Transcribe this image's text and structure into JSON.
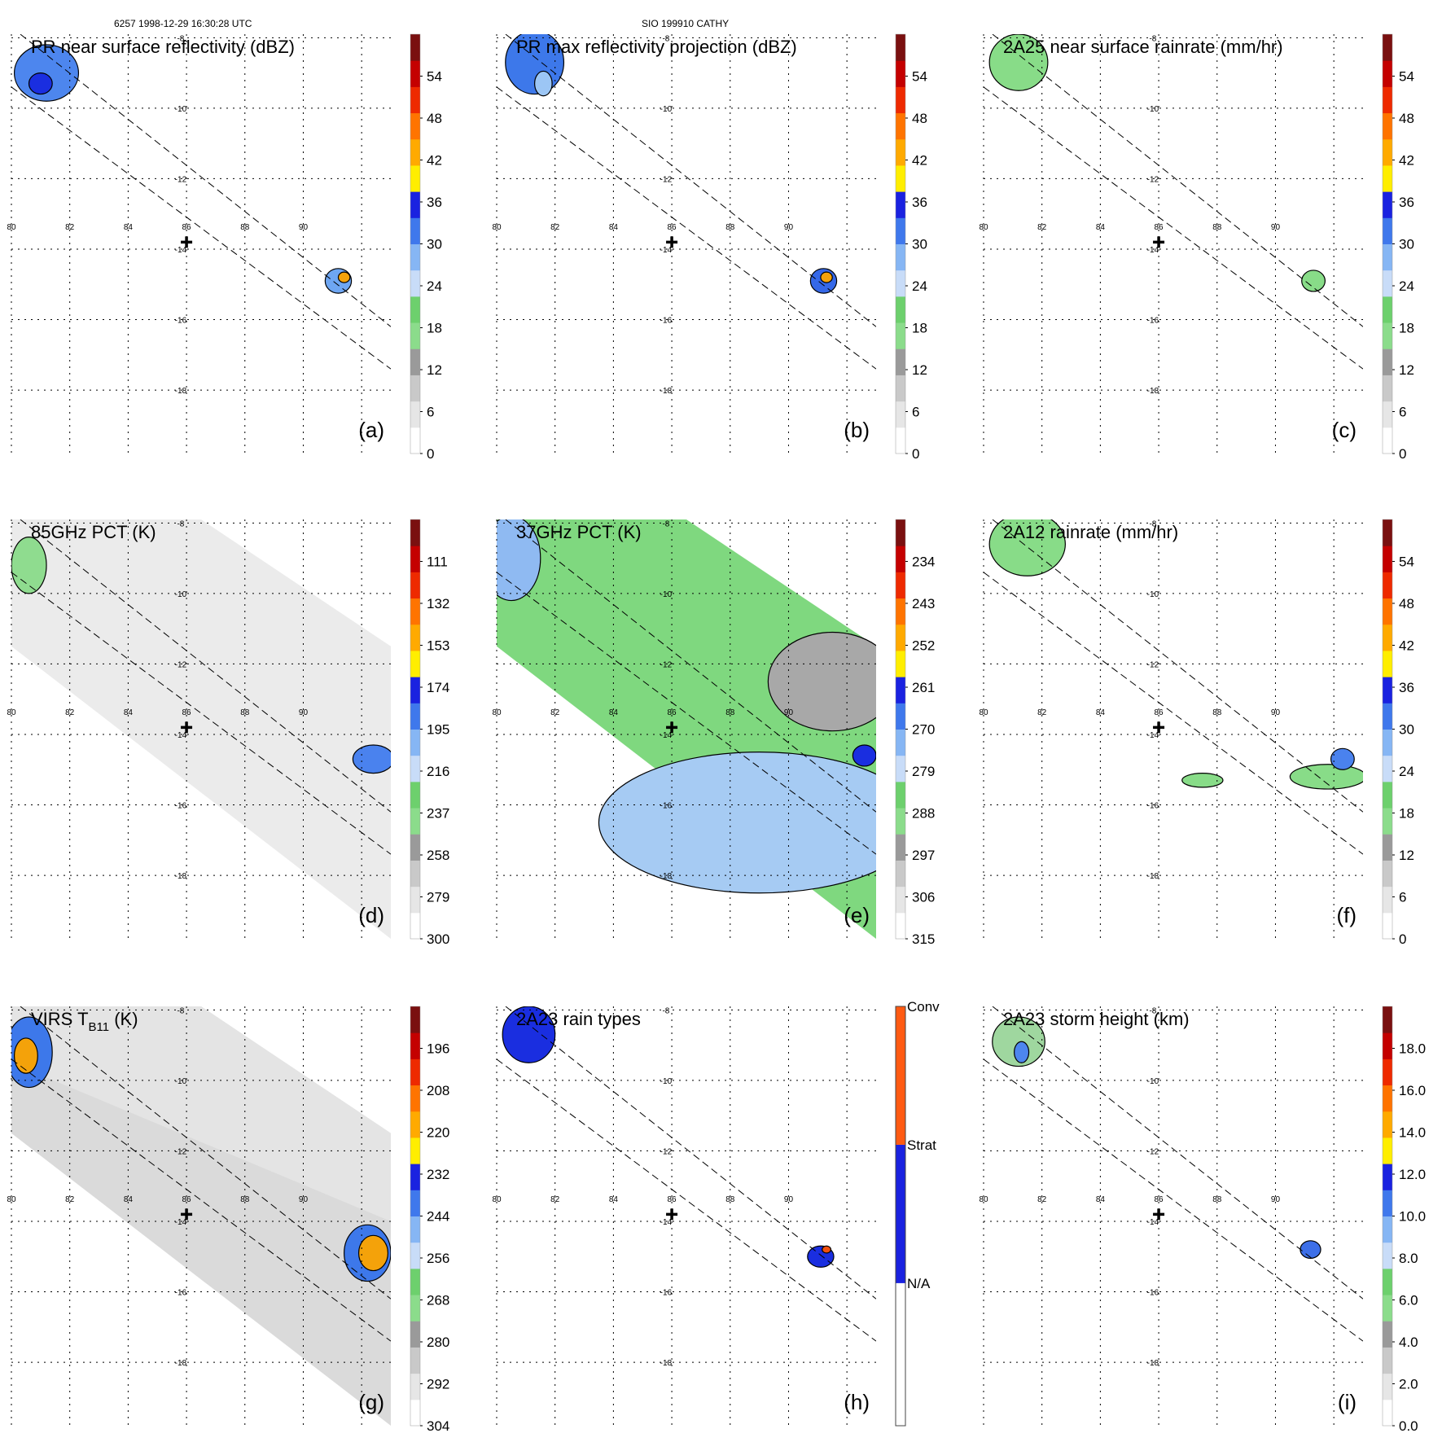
{
  "header": {
    "left": "6257 1998-12-29 16:30:28 UTC",
    "center": "SIO 199910 CATHY"
  },
  "map_axes": {
    "lon_ticks": [
      "80",
      "82",
      "84",
      "86",
      "88",
      "90"
    ],
    "lat_ticks": [
      "-8",
      "-10",
      "-12",
      "-14",
      "-16",
      "-18"
    ],
    "lon_range": [
      80,
      93
    ],
    "lat_range": [
      -7.9,
      -19.8
    ],
    "gridlines": true,
    "center_marker": {
      "lon": 86,
      "lat": -13.8
    }
  },
  "swath_edges": [
    {
      "start": [
        80,
        -9.4
      ],
      "end": [
        93,
        -17.4
      ]
    },
    {
      "start": [
        80,
        -7.7
      ],
      "end": [
        93,
        -16.2
      ]
    }
  ],
  "chart_data": [
    {
      "type": "heatmap",
      "panel_label": "(a)",
      "title": "PR near surface reflectivity (dBZ)",
      "colorbar": {
        "ticks": [
          "0",
          "6",
          "12",
          "18",
          "24",
          "30",
          "36",
          "42",
          "48",
          "54"
        ],
        "range": [
          0,
          60
        ]
      },
      "swath": "pr",
      "features": [
        {
          "lon": 81.2,
          "lat": -9.0,
          "rx": 1.1,
          "ry": 0.8,
          "color": "#4d86ee"
        },
        {
          "lon": 81.0,
          "lat": -9.3,
          "rx": 0.4,
          "ry": 0.3,
          "color": "#1a2ee0"
        },
        {
          "lon": 91.2,
          "lat": -14.9,
          "rx": 0.45,
          "ry": 0.35,
          "color": "#6ea6f2"
        },
        {
          "lon": 91.4,
          "lat": -14.8,
          "rx": 0.2,
          "ry": 0.15,
          "color": "#f4a20a"
        }
      ]
    },
    {
      "type": "heatmap",
      "panel_label": "(b)",
      "title": "PR max reflectivity projection (dBZ)",
      "colorbar": {
        "ticks": [
          "0",
          "6",
          "12",
          "18",
          "24",
          "30",
          "36",
          "42",
          "48",
          "54"
        ],
        "range": [
          0,
          60
        ]
      },
      "swath": "pr",
      "features": [
        {
          "lon": 81.3,
          "lat": -8.7,
          "rx": 1.0,
          "ry": 0.9,
          "color": "#3d78ea"
        },
        {
          "lon": 81.6,
          "lat": -9.3,
          "rx": 0.3,
          "ry": 0.35,
          "color": "#9cc6f5"
        },
        {
          "lon": 91.2,
          "lat": -14.9,
          "rx": 0.45,
          "ry": 0.35,
          "color": "#3568e8"
        },
        {
          "lon": 91.3,
          "lat": -14.8,
          "rx": 0.2,
          "ry": 0.15,
          "color": "#f4a20a"
        }
      ]
    },
    {
      "type": "heatmap",
      "panel_label": "(c)",
      "title": "2A25 near surface rainrate (mm/hr)",
      "colorbar": {
        "ticks": [
          "0",
          "6",
          "12",
          "18",
          "24",
          "30",
          "36",
          "42",
          "48",
          "54"
        ],
        "range": [
          0,
          60
        ]
      },
      "swath": "pr",
      "features": [
        {
          "lon": 81.2,
          "lat": -8.7,
          "rx": 1.0,
          "ry": 0.8,
          "color": "#88dc88"
        },
        {
          "lon": 91.3,
          "lat": -14.9,
          "rx": 0.4,
          "ry": 0.3,
          "color": "#88dc88"
        }
      ]
    },
    {
      "type": "heatmap",
      "panel_label": "(d)",
      "title": "85GHz PCT (K)",
      "colorbar": {
        "ticks": [
          "300",
          "279",
          "258",
          "237",
          "216",
          "195",
          "174",
          "153",
          "132",
          "111"
        ],
        "range": [
          300,
          90
        ]
      },
      "swath": "tmi",
      "background": "#ebebeb",
      "features": [
        {
          "lon": 80.6,
          "lat": -9.2,
          "rx": 0.6,
          "ry": 0.8,
          "color": "#8fdc8f"
        },
        {
          "lon": 92.4,
          "lat": -14.7,
          "rx": 0.7,
          "ry": 0.4,
          "color": "#4a82ee"
        }
      ]
    },
    {
      "type": "heatmap",
      "panel_label": "(e)",
      "title": "37GHz PCT (K)",
      "colorbar": {
        "ticks": [
          "315",
          "306",
          "297",
          "288",
          "279",
          "270",
          "261",
          "252",
          "243",
          "234"
        ],
        "range": [
          315,
          225
        ]
      },
      "swath": "tmi",
      "background": "#7fd87f",
      "features": [
        {
          "lon": 91.5,
          "lat": -12.5,
          "rx": 2.2,
          "ry": 1.4,
          "color": "#a8a8a8"
        },
        {
          "lon": 89.0,
          "lat": -16.5,
          "rx": 5.5,
          "ry": 2.0,
          "color": "#a6cbf3"
        },
        {
          "lon": 80.5,
          "lat": -9.0,
          "rx": 1.0,
          "ry": 1.2,
          "color": "#8fbaf2"
        },
        {
          "lon": 92.6,
          "lat": -14.6,
          "rx": 0.4,
          "ry": 0.3,
          "color": "#1a2ee0"
        }
      ]
    },
    {
      "type": "heatmap",
      "panel_label": "(f)",
      "title": "2A12 rainrate (mm/hr)",
      "colorbar": {
        "ticks": [
          "0",
          "6",
          "12",
          "18",
          "24",
          "30",
          "36",
          "42",
          "48",
          "54"
        ],
        "range": [
          0,
          60
        ]
      },
      "swath": "tmi",
      "background": "#ffffff",
      "features": [
        {
          "lon": 81.5,
          "lat": -8.6,
          "rx": 1.3,
          "ry": 0.9,
          "color": "#88dc88"
        },
        {
          "lon": 91.8,
          "lat": -15.2,
          "rx": 1.3,
          "ry": 0.35,
          "color": "#88dc88"
        },
        {
          "lon": 87.5,
          "lat": -15.3,
          "rx": 0.7,
          "ry": 0.2,
          "color": "#88dc88"
        },
        {
          "lon": 92.3,
          "lat": -14.7,
          "rx": 0.4,
          "ry": 0.3,
          "color": "#4a82ee"
        }
      ]
    },
    {
      "type": "heatmap",
      "panel_label": "(g)",
      "title": "VIRS T",
      "title_subscript": "B11",
      "title_suffix": "(K)",
      "colorbar": {
        "ticks": [
          "304",
          "292",
          "280",
          "268",
          "256",
          "244",
          "232",
          "220",
          "208",
          "196"
        ],
        "range": [
          304,
          184
        ]
      },
      "swath": "virs",
      "background": "#dadada",
      "features": [
        {
          "lon": 80.6,
          "lat": -9.2,
          "rx": 0.8,
          "ry": 1.0,
          "color": "#3d78ea"
        },
        {
          "lon": 80.5,
          "lat": -9.3,
          "rx": 0.4,
          "ry": 0.5,
          "color": "#f4a20a"
        },
        {
          "lon": 92.2,
          "lat": -14.9,
          "rx": 0.8,
          "ry": 0.8,
          "color": "#3d78ea"
        },
        {
          "lon": 92.4,
          "lat": -14.9,
          "rx": 0.5,
          "ry": 0.5,
          "color": "#f4a20a"
        }
      ]
    },
    {
      "type": "heatmap",
      "panel_label": "(h)",
      "title": "2A23 rain types",
      "colorbar": {
        "ticks": [
          "N/A",
          "Strat",
          "Conv"
        ],
        "categorical": true
      },
      "swath": "pr",
      "features": [
        {
          "lon": 81.1,
          "lat": -8.7,
          "rx": 0.9,
          "ry": 0.8,
          "color": "#1a2ee0"
        },
        {
          "lon": 91.1,
          "lat": -15.0,
          "rx": 0.45,
          "ry": 0.3,
          "color": "#1a2ee0"
        },
        {
          "lon": 91.3,
          "lat": -14.8,
          "rx": 0.15,
          "ry": 0.1,
          "color": "#f05010"
        }
      ]
    },
    {
      "type": "heatmap",
      "panel_label": "(i)",
      "title": "2A23 storm height (km)",
      "colorbar": {
        "ticks": [
          "0.0",
          "2.0",
          "4.0",
          "6.0",
          "8.0",
          "10.0",
          "12.0",
          "14.0",
          "16.0",
          "18.0"
        ],
        "range": [
          0,
          20
        ]
      },
      "swath": "pr",
      "features": [
        {
          "lon": 81.2,
          "lat": -8.9,
          "rx": 0.9,
          "ry": 0.7,
          "color": "#9fd79f"
        },
        {
          "lon": 81.3,
          "lat": -9.2,
          "rx": 0.25,
          "ry": 0.3,
          "color": "#4d86ee"
        },
        {
          "lon": 91.2,
          "lat": -14.8,
          "rx": 0.35,
          "ry": 0.25,
          "color": "#3d6fe8"
        }
      ]
    }
  ]
}
